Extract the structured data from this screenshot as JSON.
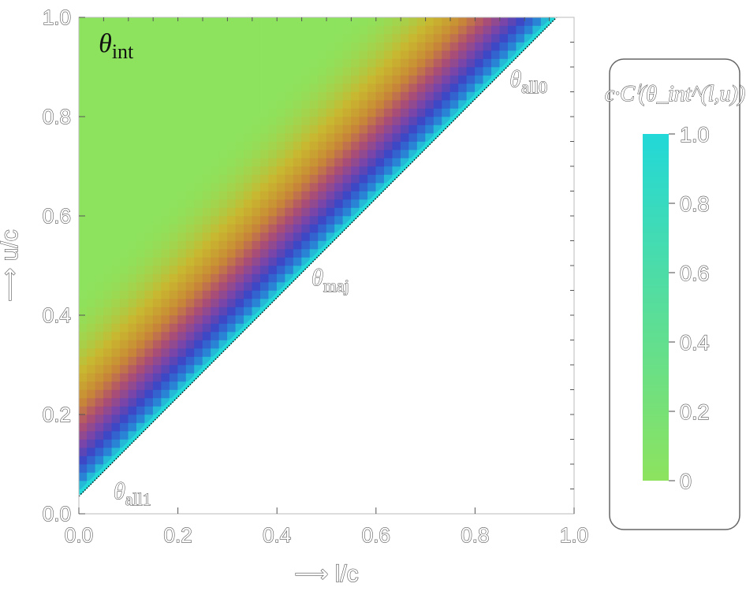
{
  "chart_data": {
    "type": "heatmap",
    "x": {
      "label": "⟶ l/c",
      "range": [
        0.0,
        1.0
      ],
      "ticks": [
        "0.0",
        "0.2",
        "0.4",
        "0.6",
        "0.8",
        "1.0"
      ]
    },
    "y": {
      "label": "⟶ u/c",
      "range": [
        0.0,
        1.0
      ],
      "ticks": [
        "0.0",
        "0.2",
        "0.4",
        "0.6",
        "0.8",
        "1.0"
      ]
    },
    "region": {
      "description": "u > l + 0.04 (up to l = 0.96, u = 1.0)",
      "boundary_offset": 0.04
    },
    "colorbar": {
      "title": "c·Cⁱ(θ_int^(l,u))",
      "range": [
        0,
        1.0
      ],
      "ticks": [
        "0",
        "0.2",
        "0.4",
        "0.6",
        "0.8",
        "1.0"
      ],
      "colors": [
        "#8de35e",
        "#c8b830",
        "#c98a35",
        "#b04f6e",
        "#7a45a8",
        "#3a48c6",
        "#2a7fd6",
        "#22d8d8"
      ]
    },
    "annotations": [
      {
        "text": "θ",
        "sub": "int",
        "x": 0.04,
        "y": 0.93
      },
      {
        "text": "θ",
        "sub": "maj",
        "x": 0.47,
        "y": 0.46
      },
      {
        "text": "θ",
        "sub": "all0",
        "x": 0.87,
        "y": 0.86
      },
      {
        "text": "θ",
        "sub": "all1",
        "x": 0.07,
        "y": 0.03
      }
    ]
  }
}
